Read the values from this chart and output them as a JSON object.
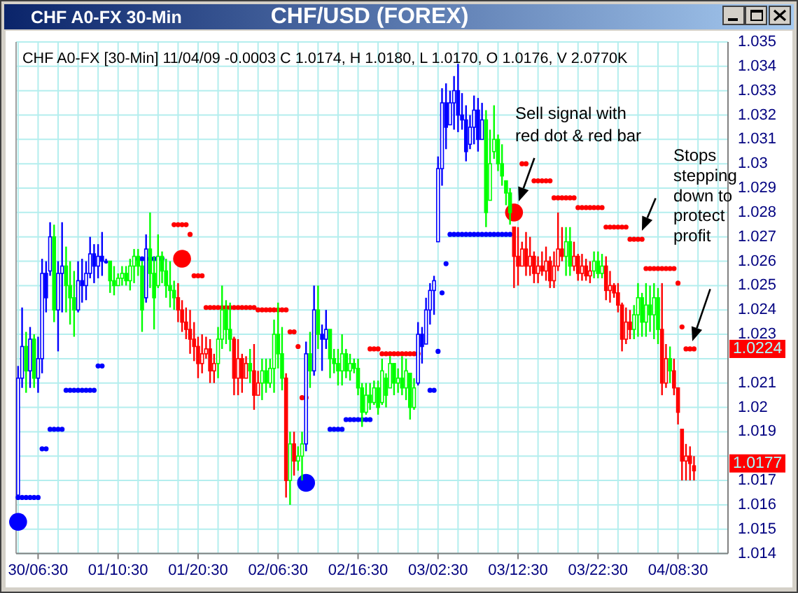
{
  "chart_data": {
    "type": "candlestick",
    "title": "CHF/USD (FOREX)",
    "subtitle": "CHF A0-FX [30-Min] 11/04/09 -0.0003 C 1.0174, H 1.0180, L 1.0170, O 1.0176, V 2.0770K",
    "annotations": [
      "CHF A0-FX 30-Min",
      "Sell signal with red dot & red bar",
      "Stops stepping down to protect profit",
      {
        "text": "1.0224",
        "y": 1.0224
      },
      {
        "text": "1.0177",
        "y": 1.0177
      }
    ],
    "categories": [
      null,
      null,
      null,
      null,
      null,
      "30/06:30",
      null,
      null,
      null,
      null,
      null,
      null,
      null,
      null,
      null,
      null,
      null,
      null,
      null,
      null,
      null,
      null,
      null,
      null,
      null,
      "01/10:30",
      null,
      null,
      null,
      null,
      null,
      null,
      null,
      null,
      null,
      null,
      null,
      null,
      null,
      null,
      null,
      null,
      null,
      null,
      null,
      "01/20:30",
      null,
      null,
      null,
      null,
      null,
      null,
      null,
      null,
      null,
      null,
      null,
      null,
      null,
      null,
      null,
      null,
      null,
      null,
      null,
      "02/06:30",
      null,
      null,
      null,
      null,
      null,
      null,
      null,
      null,
      null,
      null,
      null,
      null,
      null,
      null,
      null,
      null,
      null,
      null,
      null,
      "02/16:30",
      null,
      null,
      null,
      null,
      null,
      null,
      null,
      null,
      null,
      null,
      null,
      null,
      null,
      null,
      null,
      null,
      null,
      null,
      null,
      "03/02:30",
      null,
      null,
      null,
      null,
      null,
      null,
      null,
      null,
      null,
      null,
      null,
      null,
      null,
      null,
      null,
      null,
      null,
      null,
      null,
      "03/12:30",
      null,
      null,
      null,
      null,
      null,
      null,
      null,
      null,
      null,
      null,
      null,
      null,
      null,
      null,
      null,
      null,
      null,
      null,
      null,
      "03/22:30",
      null,
      null,
      null,
      null,
      null,
      null,
      null,
      null,
      null,
      null,
      null,
      null,
      null,
      null,
      null,
      null,
      null,
      null,
      null,
      "04/08:30",
      null,
      null,
      null,
      null,
      null,
      null,
      null,
      null,
      null,
      null,
      null,
      null
    ],
    "ylim": [
      1.014,
      1.035
    ],
    "yticks": [
      1.014,
      1.015,
      1.016,
      1.017,
      {
        "value": 1.018,
        "label": null
      },
      1.019,
      1.02,
      1.021,
      {
        "value": 1.022,
        "label": null
      },
      1.023,
      1.024,
      1.025,
      1.026,
      1.027,
      1.028,
      1.029,
      1.03,
      1.031,
      1.032,
      1.033,
      1.034,
      1.035
    ],
    "grid": true,
    "marker": "circle",
    "series": [
      {
        "ohlc": [
          [
            1.0164,
            1.0217,
            1.0163,
            1.0212
          ],
          [
            1.0212,
            1.0241,
            1.0208,
            1.0225
          ],
          [
            1.0225,
            1.0231,
            1.0206,
            1.0215
          ],
          [
            1.0215,
            1.0233,
            1.0208,
            1.0228
          ],
          [
            1.0228,
            1.023,
            1.0208,
            1.0212
          ],
          [
            1.0212,
            1.0229,
            1.0206,
            1.022
          ],
          [
            1.022,
            1.0261,
            1.0214,
            1.0255
          ],
          [
            1.0255,
            1.026,
            1.0239,
            1.0245
          ],
          [
            1.0256,
            1.0276,
            1.0254,
            1.027
          ],
          [
            1.027,
            1.0275,
            1.0235,
            1.024
          ],
          [
            1.024,
            1.026,
            1.0223,
            1.0255
          ],
          [
            1.0255,
            1.0276,
            1.0239,
            1.0258
          ],
          [
            1.0258,
            1.0266,
            1.0239,
            1.025
          ],
          [
            1.025,
            1.026,
            1.0234,
            1.0245
          ],
          [
            1.0245,
            1.0256,
            1.0229,
            1.024
          ],
          [
            1.024,
            1.026,
            1.0239,
            1.0252
          ],
          [
            1.0252,
            1.0261,
            1.0243,
            1.025
          ],
          [
            1.025,
            1.026,
            1.0244,
            1.0255
          ],
          [
            1.0255,
            1.027,
            1.0253,
            1.0263
          ],
          [
            1.0263,
            1.0267,
            1.0251,
            1.0258
          ],
          [
            1.0258,
            1.0267,
            1.0253,
            1.0262
          ],
          [
            1.0262,
            1.0272,
            1.0254,
            1.026
          ],
          [
            1.026,
            1.0261,
            1.0259,
            1.026
          ],
          [
            1.026,
            1.026,
            1.0247,
            1.0252
          ],
          [
            1.0252,
            1.0258,
            1.0246,
            1.025
          ],
          [
            1.025,
            1.0255,
            1.025,
            1.0253
          ],
          [
            1.0253,
            1.0258,
            1.025,
            1.0255
          ],
          [
            1.0255,
            1.0258,
            1.025,
            1.0252
          ],
          [
            1.0252,
            1.0261,
            1.0248,
            1.0258
          ],
          [
            1.0258,
            1.0265,
            1.0251,
            1.0262
          ],
          [
            1.0262,
            1.0265,
            1.0254,
            1.0258
          ],
          [
            1.0258,
            1.026,
            1.0231,
            1.024
          ],
          [
            1.0245,
            1.0271,
            1.0243,
            1.0265
          ],
          [
            1.0265,
            1.028,
            1.0249,
            1.0255
          ],
          [
            1.0255,
            1.0262,
            1.0232,
            1.0245
          ],
          [
            1.025,
            1.0271,
            1.0249,
            1.0262
          ],
          [
            1.0262,
            1.0264,
            1.0251,
            1.0256
          ],
          [
            1.0256,
            1.0261,
            1.0245,
            1.025
          ],
          [
            1.025,
            1.026,
            1.0241,
            1.0248
          ],
          [
            1.0248,
            1.0252,
            1.024,
            1.0245
          ],
          [
            1.0245,
            1.0251,
            1.0235,
            1.024
          ],
          [
            1.024,
            1.0244,
            1.0231,
            1.0235
          ],
          [
            1.0235,
            1.0241,
            1.0228,
            1.0232
          ],
          [
            1.0232,
            1.024,
            1.0222,
            1.0228
          ],
          [
            1.0228,
            1.0235,
            1.0219,
            1.0225
          ],
          [
            1.0225,
            1.0229,
            1.0212,
            1.0218
          ],
          [
            1.0218,
            1.023,
            1.0214,
            1.0222
          ],
          [
            1.0222,
            1.0229,
            1.022,
            1.0224
          ],
          [
            1.0224,
            1.0228,
            1.021,
            1.0215
          ],
          [
            1.0215,
            1.0222,
            1.021,
            1.0218
          ],
          [
            1.0218,
            1.0233,
            1.0212,
            1.0228
          ],
          [
            1.0228,
            1.025,
            1.0224,
            1.024
          ],
          [
            1.024,
            1.0244,
            1.0226,
            1.0232
          ],
          [
            1.0232,
            1.0243,
            1.0223,
            1.0228
          ],
          [
            1.0228,
            1.0229,
            1.0205,
            1.0212
          ],
          [
            1.0212,
            1.0228,
            1.0205,
            1.022
          ],
          [
            1.022,
            1.0222,
            1.0206,
            1.0212
          ],
          [
            1.0212,
            1.0221,
            1.0212,
            1.0218
          ],
          [
            1.0218,
            1.0224,
            1.021,
            1.0215
          ],
          [
            1.0215,
            1.0226,
            1.0199,
            1.0205
          ],
          [
            1.0205,
            1.0215,
            1.0205,
            1.021
          ],
          [
            1.021,
            1.022,
            1.0203,
            1.0215
          ],
          [
            1.0215,
            1.022,
            1.0206,
            1.021
          ],
          [
            1.021,
            1.022,
            1.0208,
            1.0216
          ],
          [
            1.0216,
            1.0236,
            1.0206,
            1.023
          ],
          [
            1.023,
            1.0243,
            1.0216,
            1.0222
          ],
          [
            1.0222,
            1.0233,
            1.0207,
            1.0212
          ],
          [
            1.0212,
            1.0214,
            1.0163,
            1.017
          ],
          [
            1.017,
            1.019,
            1.016,
            1.0185
          ],
          [
            1.0185,
            1.019,
            1.0172,
            1.0178
          ],
          [
            1.0178,
            1.0184,
            1.0174,
            1.018
          ],
          [
            1.018,
            1.019,
            1.017,
            1.0185
          ],
          [
            1.0185,
            1.0227,
            1.0182,
            1.0222
          ],
          [
            1.0222,
            1.0231,
            1.0208,
            1.0215
          ],
          [
            1.0215,
            1.025,
            1.0213,
            1.024
          ],
          [
            1.024,
            1.025,
            1.0224,
            1.023
          ],
          [
            1.023,
            1.0234,
            1.0215,
            1.0228
          ],
          [
            1.0228,
            1.024,
            1.0224,
            1.0232
          ],
          [
            1.0232,
            1.0232,
            1.0212,
            1.022
          ],
          [
            1.022,
            1.0224,
            1.0214,
            1.0218
          ],
          [
            1.0218,
            1.0224,
            1.0209,
            1.0215
          ],
          [
            1.0215,
            1.023,
            1.0209,
            1.0222
          ],
          [
            1.0222,
            1.0224,
            1.0212,
            1.0215
          ],
          [
            1.0215,
            1.0222,
            1.0211,
            1.0218
          ],
          [
            1.0218,
            1.022,
            1.0214,
            1.0216
          ],
          [
            1.0216,
            1.022,
            1.0205,
            1.0208
          ],
          [
            1.0208,
            1.021,
            1.0192,
            1.0198
          ],
          [
            1.0198,
            1.021,
            1.0197,
            1.0205
          ],
          [
            1.0205,
            1.021,
            1.0199,
            1.0202
          ],
          [
            1.0202,
            1.0211,
            1.0201,
            1.0208
          ],
          [
            1.0208,
            1.0211,
            1.0197,
            1.02
          ],
          [
            1.0202,
            1.022,
            1.0201,
            1.0215
          ],
          [
            1.0212,
            1.0214,
            1.02,
            1.0205
          ],
          [
            1.0208,
            1.0221,
            1.0208,
            1.0218
          ],
          [
            1.0218,
            1.0218,
            1.0205,
            1.021
          ],
          [
            1.021,
            1.0216,
            1.0206,
            1.0212
          ],
          [
            1.0212,
            1.0221,
            1.0205,
            1.0208
          ],
          [
            1.0208,
            1.022,
            1.0203,
            1.0215
          ],
          [
            1.0214,
            1.0214,
            1.0195,
            1.02
          ],
          [
            1.02,
            1.0212,
            1.0199,
            1.0208
          ],
          [
            1.021,
            1.0235,
            1.0209,
            1.023
          ],
          [
            1.023,
            1.0233,
            1.0218,
            1.0225
          ],
          [
            1.0226,
            1.0245,
            1.0226,
            1.024
          ],
          [
            1.024,
            1.0251,
            1.0234,
            1.0248
          ],
          [
            1.0248,
            1.0254,
            1.0238,
            1.0252
          ],
          [
            1.0268,
            1.0303,
            1.0268,
            1.0298
          ],
          [
            1.0298,
            1.0331,
            1.0291,
            1.0325
          ],
          [
            1.0325,
            1.0333,
            1.0306,
            1.0315
          ],
          [
            1.0316,
            1.033,
            1.0316,
            1.0325
          ],
          [
            1.0325,
            1.0336,
            1.0314,
            1.033
          ],
          [
            1.033,
            1.0341,
            1.0313,
            1.032
          ],
          [
            1.032,
            1.0329,
            1.0314,
            1.0318
          ],
          [
            1.0318,
            1.0324,
            1.0301,
            1.0305
          ],
          [
            1.0308,
            1.032,
            1.0306,
            1.0315
          ],
          [
            1.0315,
            1.0328,
            1.0308,
            1.0322
          ],
          [
            1.0322,
            1.0327,
            1.0305,
            1.031
          ],
          [
            1.031,
            1.0325,
            1.031,
            1.0318
          ],
          [
            1.0318,
            1.0322,
            1.0274,
            1.028
          ],
          [
            1.0285,
            1.0314,
            1.0285,
            1.03
          ],
          [
            1.0305,
            1.0324,
            1.0302,
            1.031
          ],
          [
            1.031,
            1.0312,
            1.0297,
            1.03
          ],
          [
            1.03,
            1.0308,
            1.0291,
            1.0295
          ],
          [
            1.0293,
            1.0293,
            1.0283,
            1.0288
          ],
          [
            1.0288,
            1.029,
            1.0275,
            1.028
          ],
          [
            1.0274,
            1.0274,
            1.0249,
            1.0262
          ],
          [
            1.0262,
            1.0274,
            1.025,
            1.0258
          ],
          [
            1.0258,
            1.0268,
            1.0258,
            1.0265
          ],
          [
            1.0265,
            1.0272,
            1.0254,
            1.0258
          ],
          [
            1.0258,
            1.027,
            1.0254,
            1.0262
          ],
          [
            1.0262,
            1.0264,
            1.0251,
            1.0255
          ],
          [
            1.0255,
            1.0262,
            1.0251,
            1.0258
          ],
          [
            1.0258,
            1.0264,
            1.0254,
            1.0256
          ],
          [
            1.0256,
            1.0266,
            1.0252,
            1.026
          ],
          [
            1.026,
            1.0262,
            1.0249,
            1.0252
          ],
          [
            1.0252,
            1.0264,
            1.0249,
            1.0258
          ],
          [
            1.0258,
            1.028,
            1.0256,
            1.0265
          ],
          [
            1.0265,
            1.0274,
            1.026,
            1.0262
          ],
          [
            1.0262,
            1.0274,
            1.0254,
            1.0268
          ],
          [
            1.0268,
            1.0274,
            1.0254,
            1.0258
          ],
          [
            1.0258,
            1.0268,
            1.0256,
            1.0262
          ],
          [
            1.0262,
            1.0263,
            1.0252,
            1.0255
          ],
          [
            1.0255,
            1.0263,
            1.0252,
            1.0258
          ],
          [
            1.0258,
            1.0261,
            1.0252,
            1.0254
          ],
          [
            1.0254,
            1.026,
            1.0251,
            1.0256
          ],
          [
            1.0256,
            1.0264,
            1.0253,
            1.026
          ],
          [
            1.026,
            1.0264,
            1.0253,
            1.0255
          ],
          [
            1.0255,
            1.0263,
            1.0253,
            1.0258
          ],
          [
            1.0258,
            1.0262,
            1.0244,
            1.0248
          ],
          [
            1.0248,
            1.0256,
            1.0243,
            1.025
          ],
          [
            1.025,
            1.0251,
            1.0245,
            1.0247
          ],
          [
            1.0247,
            1.0251,
            1.0239,
            1.0242
          ],
          [
            1.0242,
            1.0243,
            1.0223,
            1.0228
          ],
          [
            1.0228,
            1.0241,
            1.0226,
            1.0235
          ],
          [
            1.0235,
            1.024,
            1.0228,
            1.0232
          ],
          [
            1.0232,
            1.0242,
            1.0228,
            1.0238
          ],
          [
            1.0238,
            1.0251,
            1.0229,
            1.0245
          ],
          [
            1.0245,
            1.0247,
            1.0229,
            1.0235
          ],
          [
            1.0235,
            1.0251,
            1.0229,
            1.0242
          ],
          [
            1.0242,
            1.025,
            1.0231,
            1.0238
          ],
          [
            1.0238,
            1.0251,
            1.0228,
            1.0245
          ],
          [
            1.0245,
            1.0249,
            1.0226,
            1.0232
          ],
          [
            1.0232,
            1.0251,
            1.0205,
            1.021
          ],
          [
            1.021,
            1.0226,
            1.0208,
            1.022
          ],
          [
            1.022,
            1.0225,
            1.021,
            1.0215
          ],
          [
            1.0215,
            1.022,
            1.0205,
            1.0208
          ],
          [
            1.0208,
            1.0208,
            1.0193,
            1.0198
          ],
          [
            1.0191,
            1.0191,
            1.017,
            1.0178
          ],
          [
            1.0178,
            1.0185,
            1.017,
            1.018
          ],
          [
            1.018,
            1.0184,
            1.017,
            1.0177
          ],
          [
            1.0176,
            1.018,
            1.017,
            1.0174
          ],
          null,
          null,
          null,
          null,
          null,
          null,
          null,
          null
        ],
        "colors": [
          "#0000ff",
          "#0000ff",
          "#00ff00",
          "#0000ff",
          "#00ff00",
          "#0000ff",
          "#0000ff",
          "#0000ff",
          "#0000ff",
          "#00ff00",
          "#0000ff",
          "#0000ff",
          "#00ff00",
          "#00ff00",
          "#00ff00",
          "#0000ff",
          "#0000ff",
          "#0000ff",
          "#0000ff",
          "#0000ff",
          "#0000ff",
          "#0000ff",
          "#0000ff",
          "#00ff00",
          "#00ff00",
          "#00ff00",
          "#00ff00",
          "#00ff00",
          "#00ff00",
          "#00ff00",
          "#00ff00",
          "#00ff00",
          "#0000ff",
          "#00ff00",
          "#00ff00",
          "#00ff00",
          "#00ff00",
          "#00ff00",
          "#00ff00",
          "#00ff00",
          "#ff0000",
          "#ff0000",
          "#ff0000",
          "#ff0000",
          "#ff0000",
          "#ff0000",
          "#ff0000",
          "#ff0000",
          "#ff0000",
          "#ff0000",
          "#00ff00",
          "#00ff00",
          "#00ff00",
          "#00ff00",
          "#ff0000",
          "#ff0000",
          "#ff0000",
          "#ff0000",
          "#00ff00",
          "#ff0000",
          "#ff0000",
          "#00ff00",
          "#00ff00",
          "#00ff00",
          "#00ff00",
          "#00ff00",
          "#00ff00",
          "#ff0000",
          "#00ff00",
          "#ff0000",
          "#00ff00",
          "#00ff00",
          "#0000ff",
          "#00ff00",
          "#0000ff",
          "#00ff00",
          "#0000ff",
          "#0000ff",
          "#00ff00",
          "#00ff00",
          "#00ff00",
          "#00ff00",
          "#00ff00",
          "#00ff00",
          "#00ff00",
          "#00ff00",
          "#00ff00",
          "#00ff00",
          "#00ff00",
          "#00ff00",
          "#00ff00",
          "#00ff00",
          "#00ff00",
          "#00ff00",
          "#00ff00",
          "#00ff00",
          "#00ff00",
          "#00ff00",
          "#00ff00",
          "#00ff00",
          "#0000ff",
          "#0000ff",
          "#0000ff",
          "#0000ff",
          "#0000ff",
          "#0000ff",
          "#0000ff",
          "#0000ff",
          "#0000ff",
          "#0000ff",
          "#0000ff",
          "#0000ff",
          "#0000ff",
          "#0000ff",
          "#0000ff",
          "#0000ff",
          "#0000ff",
          "#00ff00",
          "#00ff00",
          "#00ff00",
          "#00ff00",
          "#00ff00",
          "#00ff00",
          "#00ff00",
          "#ff0000",
          "#ff0000",
          "#ff0000",
          "#ff0000",
          "#ff0000",
          "#ff0000",
          "#ff0000",
          "#ff0000",
          "#ff0000",
          "#ff0000",
          "#ff0000",
          "#ff0000",
          "#ff0000",
          "#00ff00",
          "#00ff00",
          "#ff0000",
          "#ff0000",
          "#ff0000",
          "#ff0000",
          "#ff0000",
          "#00ff00",
          "#00ff00",
          "#00ff00",
          "#ff0000",
          "#ff0000",
          "#ff0000",
          "#ff0000",
          "#ff0000",
          "#ff0000",
          "#ff0000",
          "#00ff00",
          "#00ff00",
          "#00ff00",
          "#00ff00",
          "#00ff00",
          "#00ff00",
          "#00ff00",
          "#ff0000",
          "#ff0000",
          "#00ff00",
          "#ff0000",
          "#ff0000",
          "#ff0000",
          "#ff0000",
          "#ff0000",
          "#ff0000",
          null,
          null,
          null,
          null,
          null,
          null,
          null,
          null
        ]
      },
      {
        "type": "scatter",
        "color": "#0000ff",
        "values": [
          1.0163,
          1.0163,
          1.0163,
          1.0163,
          1.0163,
          1.0163,
          1.0183,
          1.0183,
          1.0191,
          1.0191,
          1.0191,
          1.0191,
          1.0207,
          1.0207,
          1.0207,
          1.0207,
          1.0207,
          1.0207,
          1.0207,
          1.0207,
          1.0217,
          1.0217,
          null,
          null,
          null,
          null,
          null,
          null,
          null,
          null,
          1.0261,
          1.0261,
          1.0261,
          1.0261,
          1.0261,
          1.0261,
          1.0261,
          null,
          null,
          null,
          null,
          null,
          null,
          null,
          null,
          null,
          null,
          null,
          null,
          null,
          null,
          null,
          null,
          null,
          null,
          null,
          null,
          null,
          null,
          null,
          null,
          null,
          null,
          null,
          null,
          null,
          null,
          null,
          null,
          null,
          null,
          null,
          null,
          null,
          null,
          null,
          null,
          null,
          1.0191,
          1.0191,
          1.0191,
          1.0191,
          1.0195,
          1.0195,
          1.0195,
          1.0195,
          1.0195,
          1.0195,
          1.0195,
          null,
          null,
          null,
          null,
          null,
          null,
          null,
          null,
          null,
          null,
          null,
          null,
          null,
          null,
          1.0207,
          1.0207,
          1.0223,
          1.0247,
          1.0259,
          1.0271,
          1.0271,
          1.0271,
          1.0271,
          1.0271,
          1.0271,
          1.0271,
          1.0271,
          1.0271,
          1.0271,
          1.0271,
          1.0271,
          1.0271,
          1.0271,
          1.0271,
          1.0271,
          null,
          null,
          null,
          null,
          null,
          null,
          null,
          null,
          null,
          null,
          null,
          null,
          null,
          null,
          null,
          null,
          null,
          null,
          null,
          null,
          null,
          null,
          null,
          null,
          null,
          null,
          null,
          null,
          null,
          null,
          null,
          null,
          null,
          null,
          null,
          null,
          null,
          null,
          null,
          null,
          null,
          null,
          null,
          null,
          null,
          null,
          null,
          null,
          null,
          null,
          null,
          null,
          null,
          null
        ]
      },
      {
        "type": "scatter",
        "color": "#ff0000",
        "values": [
          null,
          null,
          null,
          null,
          null,
          null,
          null,
          null,
          null,
          null,
          null,
          null,
          null,
          null,
          null,
          null,
          null,
          null,
          null,
          null,
          null,
          null,
          null,
          null,
          null,
          null,
          null,
          null,
          null,
          null,
          null,
          null,
          null,
          null,
          null,
          null,
          null,
          null,
          null,
          1.0275,
          1.0275,
          1.0275,
          1.0275,
          1.0271,
          1.0254,
          1.0254,
          1.0254,
          1.0241,
          1.0241,
          1.0241,
          1.0241,
          1.0241,
          1.0241,
          1.0241,
          1.0241,
          1.0241,
          1.0241,
          1.0241,
          1.0241,
          1.0241,
          1.024,
          1.024,
          1.024,
          1.024,
          1.024,
          1.024,
          1.024,
          1.024,
          1.0231,
          1.0231,
          1.0225,
          1.0204,
          1.0204,
          null,
          null,
          null,
          null,
          null,
          null,
          null,
          null,
          null,
          null,
          null,
          null,
          null,
          null,
          null,
          1.0224,
          1.0224,
          1.0224,
          1.0222,
          1.0222,
          1.0222,
          1.0222,
          1.0222,
          1.0222,
          1.0222,
          1.0222,
          1.0222,
          1.0222,
          null,
          null,
          null,
          null,
          null,
          null,
          null,
          null,
          null,
          null,
          null,
          null,
          null,
          null,
          null,
          null,
          null,
          null,
          null,
          null,
          null,
          null,
          null,
          null,
          null,
          1.03,
          1.03,
          null,
          1.0293,
          1.0293,
          1.0293,
          1.0293,
          1.0293,
          1.0286,
          1.0286,
          1.0286,
          1.0286,
          1.0286,
          1.0286,
          1.0282,
          1.0282,
          1.0282,
          1.0282,
          1.0282,
          1.0282,
          1.0282,
          1.0274,
          1.0274,
          1.0274,
          1.0274,
          1.0274,
          1.0274,
          1.0269,
          1.0269,
          1.0269,
          1.0269,
          1.0257,
          1.0257,
          1.0257,
          1.0257,
          1.0257,
          1.0257,
          1.0257,
          1.0257,
          1.0251,
          1.0233,
          1.0224,
          1.0224,
          1.0224,
          null,
          null,
          null,
          null,
          null,
          null,
          null,
          null
        ]
      },
      {
        "type": "bubble",
        "values": [
          1.0153,
          null,
          null,
          null,
          null,
          null,
          null,
          null,
          null,
          null,
          null,
          null,
          null,
          null,
          null,
          null,
          null,
          null,
          null,
          null,
          null,
          null,
          null,
          null,
          null,
          null,
          null,
          null,
          null,
          null,
          null,
          null,
          null,
          null,
          null,
          null,
          null,
          null,
          null,
          null,
          null,
          1.0261,
          null,
          null,
          null,
          null,
          null,
          null,
          null,
          null,
          null,
          null,
          null,
          null,
          null,
          null,
          null,
          null,
          null,
          null,
          null,
          null,
          null,
          null,
          null,
          null,
          null,
          null,
          null,
          null,
          null,
          null,
          1.0169,
          null,
          null,
          null,
          null,
          null,
          null,
          null,
          null,
          null,
          null,
          null,
          null,
          null,
          null,
          null,
          null,
          null,
          null,
          null,
          null,
          null,
          null,
          null,
          null,
          null,
          null,
          null,
          null,
          null,
          null,
          null,
          null,
          null,
          null,
          null,
          null,
          null,
          null,
          null,
          null,
          null,
          null,
          null,
          null,
          null,
          null,
          null,
          null,
          null,
          null,
          null,
          1.028,
          null,
          null,
          null,
          null,
          null,
          null,
          null,
          null,
          null,
          null,
          null,
          null,
          null,
          null,
          null,
          null,
          null,
          null,
          null,
          null,
          null,
          null,
          null,
          null,
          null,
          null,
          null,
          null,
          null,
          null,
          null,
          null,
          null,
          null,
          null,
          null,
          null,
          null,
          null,
          null,
          null,
          null,
          null,
          null,
          null,
          null,
          null,
          null,
          null,
          null,
          null,
          null,
          null
        ],
        "sizes": [
          1,
          null,
          null,
          null,
          null,
          null,
          null,
          null,
          null,
          null,
          null,
          null,
          null,
          null,
          null,
          null,
          null,
          null,
          null,
          null,
          null,
          null,
          null,
          null,
          null,
          null,
          null,
          null,
          null,
          null,
          null,
          null,
          null,
          null,
          null,
          null,
          null,
          null,
          null,
          null,
          null,
          1,
          null,
          null,
          null,
          null,
          null,
          null,
          null,
          null,
          null,
          null,
          null,
          null,
          null,
          null,
          null,
          null,
          null,
          null,
          null,
          null,
          null,
          null,
          null,
          null,
          null,
          null,
          null,
          null,
          null,
          null,
          1,
          null,
          null,
          null,
          null,
          null,
          null,
          null,
          null,
          null,
          null,
          null,
          null,
          null,
          null,
          null,
          null,
          null,
          null,
          null,
          null,
          null,
          null,
          null,
          null,
          null,
          null,
          null,
          null,
          null,
          null,
          null,
          null,
          null,
          null,
          null,
          null,
          null,
          null,
          null,
          null,
          null,
          null,
          null,
          null,
          null,
          null,
          null,
          null,
          null,
          null,
          null,
          1,
          null,
          null,
          null,
          null,
          null,
          null,
          null,
          null,
          null,
          null,
          null,
          null,
          null,
          null,
          null,
          null,
          null,
          null,
          null,
          null,
          null,
          null,
          null,
          null,
          null,
          null,
          null,
          null,
          null,
          null,
          null,
          null,
          null,
          null,
          null,
          null,
          null,
          null,
          null,
          null,
          null,
          null,
          null,
          null,
          null,
          null,
          null,
          null,
          null,
          null,
          null,
          null,
          null
        ],
        "colors": [
          "#0000ff",
          null,
          null,
          null,
          null,
          null,
          null,
          null,
          null,
          null,
          null,
          null,
          null,
          null,
          null,
          null,
          null,
          null,
          null,
          null,
          null,
          null,
          null,
          null,
          null,
          null,
          null,
          null,
          null,
          null,
          null,
          null,
          null,
          null,
          null,
          null,
          null,
          null,
          null,
          null,
          null,
          "#ff0000",
          null,
          null,
          null,
          null,
          null,
          null,
          null,
          null,
          null,
          null,
          null,
          null,
          null,
          null,
          null,
          null,
          null,
          null,
          null,
          null,
          null,
          null,
          null,
          null,
          null,
          null,
          null,
          null,
          null,
          null,
          "#0000ff",
          null,
          null,
          null,
          null,
          null,
          null,
          null,
          null,
          null,
          null,
          null,
          null,
          null,
          null,
          null,
          null,
          null,
          null,
          null,
          null,
          null,
          null,
          null,
          null,
          null,
          null,
          null,
          null,
          null,
          null,
          null,
          null,
          null,
          null,
          null,
          null,
          null,
          null,
          null,
          null,
          null,
          null,
          null,
          null,
          null,
          null,
          null,
          null,
          null,
          null,
          null,
          "#ff0000",
          null,
          null,
          null,
          null,
          null,
          null,
          null,
          null,
          null,
          null,
          null,
          null,
          null,
          null,
          null,
          null,
          null,
          null,
          null,
          null,
          null,
          null,
          null,
          null,
          null,
          null,
          null,
          null,
          null,
          null,
          null,
          null,
          null,
          null,
          null,
          null,
          null,
          null,
          null,
          null,
          null,
          null,
          null,
          null,
          null,
          null,
          null,
          null,
          null,
          null,
          null,
          null,
          null
        ]
      }
    ]
  }
}
